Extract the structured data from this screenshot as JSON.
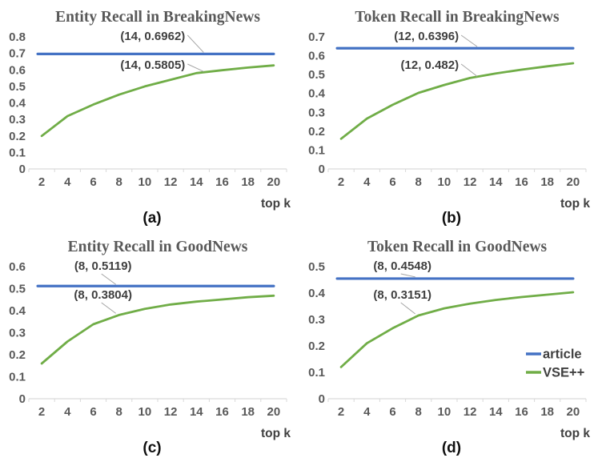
{
  "figure": {
    "background": "#ffffff",
    "xlabel": "top k",
    "colors": {
      "article": "#4472C4",
      "vse": "#70AD47",
      "axis": "#d9d9d9",
      "tick_text": "#595959",
      "title_text": "#595959",
      "annotation_text": "#3f3f3f",
      "leader": "#a6a6a6",
      "panel_letter": "#111111",
      "legend_text": "#404040",
      "xlabel_text": "#404040"
    },
    "legend": {
      "items": [
        {
          "label": "article",
          "color": "#4472C4"
        },
        {
          "label": "VSE++",
          "color": "#70AD47"
        }
      ],
      "location": "right-middle-of-panel-d"
    }
  },
  "chart_data": [
    {
      "type": "line",
      "panel_label": "(a)",
      "title": "Entity Recall in BreakingNews",
      "xlabel": "top k",
      "x": [
        2,
        4,
        6,
        8,
        10,
        12,
        14,
        16,
        18,
        20
      ],
      "ylim": [
        0,
        0.8
      ],
      "yticks": [
        0,
        0.1,
        0.2,
        0.3,
        0.4,
        0.5,
        0.6,
        0.7,
        0.8
      ],
      "grid": false,
      "series": [
        {
          "name": "article",
          "color": "#4472C4",
          "constant": 0.6962
        },
        {
          "name": "VSE++",
          "color": "#70AD47",
          "values": [
            0.2,
            0.32,
            0.39,
            0.45,
            0.5,
            0.54,
            0.5805,
            0.598,
            0.614,
            0.627
          ]
        }
      ],
      "annotations": [
        {
          "label": "(14, 0.6962)",
          "x": 14,
          "y": 0.6962,
          "series": "article"
        },
        {
          "label": "(14, 0.5805)",
          "x": 14,
          "y": 0.5805,
          "series": "VSE++"
        }
      ],
      "show_legend": false
    },
    {
      "type": "line",
      "panel_label": "(b)",
      "title": "Token Recall in BreakingNews",
      "xlabel": "top k",
      "x": [
        2,
        4,
        6,
        8,
        10,
        12,
        14,
        16,
        18,
        20
      ],
      "ylim": [
        0,
        0.7
      ],
      "yticks": [
        0,
        0.1,
        0.2,
        0.3,
        0.4,
        0.5,
        0.6,
        0.7
      ],
      "grid": false,
      "series": [
        {
          "name": "article",
          "color": "#4472C4",
          "constant": 0.6396
        },
        {
          "name": "VSE++",
          "color": "#70AD47",
          "values": [
            0.16,
            0.267,
            0.34,
            0.403,
            0.445,
            0.482,
            0.506,
            0.526,
            0.544,
            0.56
          ]
        }
      ],
      "annotations": [
        {
          "label": "(12, 0.6396)",
          "x": 12,
          "y": 0.6396,
          "series": "article"
        },
        {
          "label": "(12, 0.482)",
          "x": 12,
          "y": 0.482,
          "series": "VSE++"
        }
      ],
      "show_legend": false
    },
    {
      "type": "line",
      "panel_label": "(c)",
      "title": "Entity Recall in GoodNews",
      "xlabel": "top k",
      "x": [
        2,
        4,
        6,
        8,
        10,
        12,
        14,
        16,
        18,
        20
      ],
      "ylim": [
        0,
        0.6
      ],
      "yticks": [
        0,
        0.1,
        0.2,
        0.3,
        0.4,
        0.5,
        0.6
      ],
      "grid": false,
      "series": [
        {
          "name": "article",
          "color": "#4472C4",
          "constant": 0.5119
        },
        {
          "name": "VSE++",
          "color": "#70AD47",
          "values": [
            0.16,
            0.26,
            0.338,
            0.3804,
            0.408,
            0.428,
            0.441,
            0.451,
            0.461,
            0.468
          ]
        }
      ],
      "annotations": [
        {
          "label": "(8, 0.5119)",
          "x": 8,
          "y": 0.5119,
          "series": "article"
        },
        {
          "label": "(8, 0.3804)",
          "x": 8,
          "y": 0.3804,
          "series": "VSE++"
        }
      ],
      "show_legend": false
    },
    {
      "type": "line",
      "panel_label": "(d)",
      "title": "Token Recall in GoodNews",
      "xlabel": "top k",
      "x": [
        2,
        4,
        6,
        8,
        10,
        12,
        14,
        16,
        18,
        20
      ],
      "ylim": [
        0,
        0.5
      ],
      "yticks": [
        0,
        0.1,
        0.2,
        0.3,
        0.4,
        0.5
      ],
      "grid": false,
      "series": [
        {
          "name": "article",
          "color": "#4472C4",
          "constant": 0.4548
        },
        {
          "name": "VSE++",
          "color": "#70AD47",
          "values": [
            0.12,
            0.21,
            0.267,
            0.3151,
            0.342,
            0.36,
            0.374,
            0.385,
            0.394,
            0.403
          ]
        }
      ],
      "annotations": [
        {
          "label": "(8, 0.4548)",
          "x": 8,
          "y": 0.4548,
          "series": "article"
        },
        {
          "label": "(8, 0.3151)",
          "x": 8,
          "y": 0.3151,
          "series": "VSE++"
        }
      ],
      "show_legend": true
    }
  ]
}
